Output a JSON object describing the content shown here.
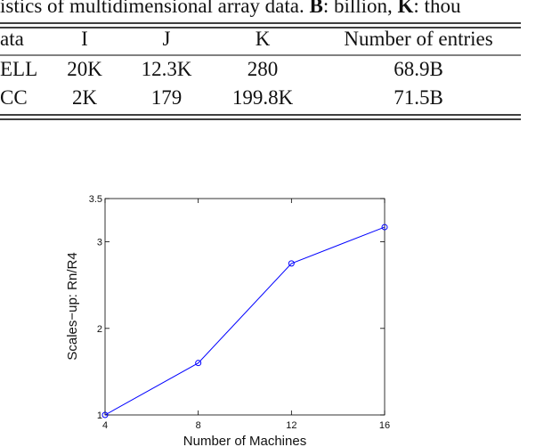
{
  "caption": [
    {
      "text": "istics of multidimensional array data. ",
      "bold": false
    },
    {
      "text": "B",
      "bold": true
    },
    {
      "text": ": billion, ",
      "bold": false
    },
    {
      "text": "K",
      "bold": true
    },
    {
      "text": ": thou",
      "bold": false
    }
  ],
  "table": {
    "header": [
      "ata",
      "I",
      "J",
      "K",
      "Number of entries"
    ],
    "rows": [
      [
        "ELL",
        "20K",
        "12.3K",
        "280",
        "68.9B"
      ],
      [
        "CC",
        "2K",
        "179",
        "199.8K",
        "71.5B"
      ]
    ]
  },
  "chart_data": {
    "type": "line",
    "x_label": "Number of Machines",
    "y_label": "Scales−up: Rn/R4",
    "x": [
      4,
      8,
      12,
      16
    ],
    "series": [
      {
        "color": "#0000ff",
        "values": [
          1,
          1.6,
          2.75,
          3.17
        ]
      }
    ],
    "xlim": [
      4,
      16
    ],
    "xticks": [
      4,
      8,
      12,
      16
    ],
    "ylim": [
      1,
      3.5
    ],
    "yticks": [
      1,
      2,
      3,
      3.5
    ],
    "markers": true
  }
}
